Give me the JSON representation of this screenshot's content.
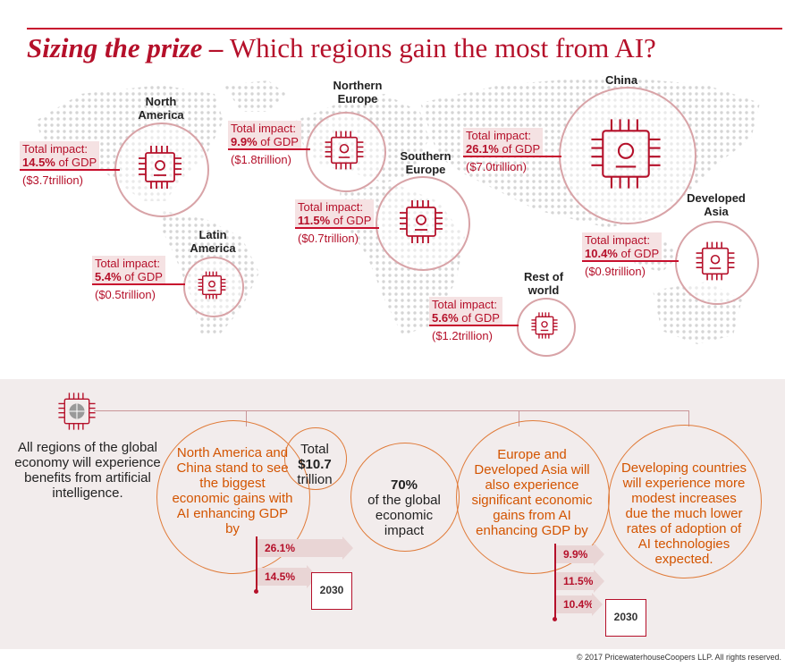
{
  "header": {
    "title_emphasis": "Sizing the prize –",
    "title_rest": "Which regions gain the most from AI?"
  },
  "regions": {
    "north_america": {
      "name": "North America",
      "impact_label": "Total impact:",
      "percent": "14.5%",
      "of_gdp": "of GDP",
      "amount": "($3.7trillion)"
    },
    "northern_europe": {
      "name": "Northern Europe",
      "impact_label": "Total impact:",
      "percent": "9.9%",
      "of_gdp": "of GDP",
      "amount": "($1.8trillion)"
    },
    "southern_europe": {
      "name": "Southern Europe",
      "impact_label": "Total impact:",
      "percent": "11.5%",
      "of_gdp": "of GDP",
      "amount": "($0.7trillion)"
    },
    "china": {
      "name": "China",
      "impact_label": "Total impact:",
      "percent": "26.1%",
      "of_gdp": "of GDP",
      "amount": "($7.0trillion)"
    },
    "developed_asia": {
      "name": "Developed Asia",
      "impact_label": "Total impact:",
      "percent": "10.4%",
      "of_gdp": "of GDP",
      "amount": "($0.9trillion)"
    },
    "latin_america": {
      "name": "Latin America",
      "impact_label": "Total impact:",
      "percent": "5.4%",
      "of_gdp": "of GDP",
      "amount": "($0.5trillion)"
    },
    "rest_of_world": {
      "name": "Rest of world",
      "impact_label": "Total impact:",
      "percent": "5.6%",
      "of_gdp": "of GDP",
      "amount": "($1.2trillion)"
    }
  },
  "summary": {
    "all_regions": "All regions of the global economy will experience benefits from artificial intelligence.",
    "na_china": "North America and China stand to see the biggest economic gains with AI enhancing GDP by",
    "total_label": "Total",
    "total_value": "$10.7",
    "total_unit": "trillion",
    "share_pct": "70%",
    "share_text": "of the global economic impact",
    "europe_asia": "Europe and Developed Asia will also experience significant economic gains from AI enhancing GDP by",
    "developing": "Developing countries will experience more modest increases due the much lower rates of adoption of AI technologies expected.",
    "na_china_values": [
      "26.1%",
      "14.5%"
    ],
    "europe_asia_values": [
      "9.9%",
      "11.5%",
      "10.4%"
    ],
    "year": "2030"
  },
  "footer": {
    "copyright": "© 2017 PricewaterhouseCoopers LLP. All rights reserved."
  },
  "colors": {
    "accent": "#b5102a",
    "orange": "#d35400",
    "rule": "#c8102e"
  }
}
